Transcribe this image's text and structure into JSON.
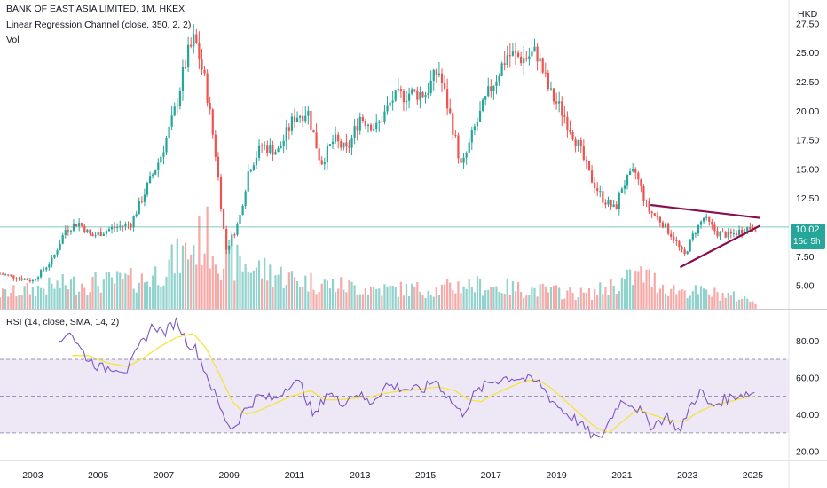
{
  "header": {
    "symbol_line": "BANK OF EAST ASIA LIMITED, 1M, HKEX",
    "indicator_1": "Linear Regression Channel (close, 350, 2, 2)",
    "indicator_2": "Vol",
    "rsi_title": "RSI (14, close, SMA, 14, 2)",
    "currency": "HKD"
  },
  "price_badge": {
    "value": "10.02",
    "countdown": "15d 5h",
    "color": "#26a69a"
  },
  "colors": {
    "up": "#26a69a",
    "down": "#ef5350",
    "trendline": "#880e4f",
    "rsi_line": "#7e57c2",
    "rsi_ma": "#f5e53b",
    "rsi_band": "#ede7f6"
  },
  "chart_data": [
    {
      "type": "candlestick",
      "title": "BANK OF EAST ASIA LIMITED, 1M, HKEX",
      "ylabel": "HKD",
      "x_ticks": [
        "2003",
        "2005",
        "2007",
        "2009",
        "2011",
        "2013",
        "2015",
        "2017",
        "2019",
        "2021",
        "2023",
        "2025"
      ],
      "y_ticks": [
        5.0,
        7.5,
        10.0,
        12.5,
        15.0,
        17.5,
        20.0,
        22.5,
        25.0,
        27.5
      ],
      "ylim": [
        3.0,
        29.5
      ],
      "last_price": 10.02,
      "anchors": [
        [
          2002.0,
          6.0
        ],
        [
          2003.0,
          5.4
        ],
        [
          2003.6,
          7.2
        ],
        [
          2004.0,
          9.8
        ],
        [
          2004.4,
          10.4
        ],
        [
          2004.8,
          9.2
        ],
        [
          2005.4,
          9.9
        ],
        [
          2006.0,
          10.3
        ],
        [
          2006.5,
          13.5
        ],
        [
          2006.9,
          16.0
        ],
        [
          2007.3,
          19.5
        ],
        [
          2007.7,
          24.5
        ],
        [
          2007.95,
          26.2
        ],
        [
          2008.3,
          22.0
        ],
        [
          2008.6,
          16.0
        ],
        [
          2008.9,
          8.0
        ],
        [
          2009.3,
          10.5
        ],
        [
          2009.6,
          15.0
        ],
        [
          2010.0,
          17.0
        ],
        [
          2010.5,
          16.5
        ],
        [
          2011.0,
          19.5
        ],
        [
          2011.4,
          20.0
        ],
        [
          2011.8,
          15.5
        ],
        [
          2012.2,
          17.5
        ],
        [
          2012.6,
          16.5
        ],
        [
          2013.0,
          19.5
        ],
        [
          2013.5,
          18.5
        ],
        [
          2014.0,
          21.0
        ],
        [
          2014.5,
          21.5
        ],
        [
          2015.0,
          21.5
        ],
        [
          2015.4,
          23.5
        ],
        [
          2015.8,
          19.0
        ],
        [
          2016.1,
          15.0
        ],
        [
          2016.5,
          18.5
        ],
        [
          2017.0,
          22.0
        ],
        [
          2017.5,
          24.8
        ],
        [
          2018.0,
          24.5
        ],
        [
          2018.4,
          25.0
        ],
        [
          2018.8,
          21.5
        ],
        [
          2019.2,
          19.8
        ],
        [
          2019.6,
          17.5
        ],
        [
          2020.0,
          14.5
        ],
        [
          2020.4,
          12.5
        ],
        [
          2020.8,
          11.5
        ],
        [
          2021.0,
          13.5
        ],
        [
          2021.4,
          14.8
        ],
        [
          2021.8,
          11.5
        ],
        [
          2022.2,
          10.5
        ],
        [
          2022.6,
          9.0
        ],
        [
          2022.9,
          7.5
        ],
        [
          2023.2,
          9.5
        ],
        [
          2023.5,
          10.8
        ],
        [
          2023.9,
          9.5
        ],
        [
          2024.3,
          9.3
        ],
        [
          2024.8,
          9.9
        ],
        [
          2025.1,
          10.02
        ]
      ],
      "trendlines": [
        {
          "name": "upper",
          "from": [
            2021.9,
            11.9
          ],
          "to": [
            2025.2,
            10.8
          ]
        },
        {
          "name": "lower",
          "from": [
            2022.8,
            6.6
          ],
          "to": [
            2025.2,
            10.1
          ]
        }
      ],
      "volume_anchors": [
        [
          2002.0,
          0.15
        ],
        [
          2004.0,
          0.25
        ],
        [
          2006.5,
          0.3
        ],
        [
          2007.6,
          0.55
        ],
        [
          2008.3,
          0.75
        ],
        [
          2008.8,
          0.5
        ],
        [
          2009.5,
          0.45
        ],
        [
          2011.0,
          0.3
        ],
        [
          2012.0,
          0.25
        ],
        [
          2013.5,
          0.2
        ],
        [
          2015.5,
          0.2
        ],
        [
          2016.2,
          0.25
        ],
        [
          2018.0,
          0.2
        ],
        [
          2020.0,
          0.15
        ],
        [
          2021.6,
          0.35
        ],
        [
          2022.5,
          0.2
        ],
        [
          2024.0,
          0.15
        ],
        [
          2025.1,
          0.08
        ]
      ]
    },
    {
      "type": "line",
      "title": "RSI (14, close, SMA, 14, 2)",
      "y_ticks": [
        20.0,
        40.0,
        60.0,
        80.0
      ],
      "ylim": [
        15,
        97
      ],
      "band": [
        30,
        70
      ],
      "midline": 50,
      "series": [
        {
          "name": "RSI",
          "anchors": [
            [
              2003.8,
              77
            ],
            [
              2004.1,
              87
            ],
            [
              2004.4,
              77
            ],
            [
              2004.7,
              70
            ],
            [
              2005.1,
              65
            ],
            [
              2005.5,
              66
            ],
            [
              2005.9,
              64
            ],
            [
              2006.3,
              78
            ],
            [
              2006.7,
              89
            ],
            [
              2007.0,
              84
            ],
            [
              2007.4,
              91
            ],
            [
              2007.7,
              80
            ],
            [
              2008.0,
              75
            ],
            [
              2008.4,
              58
            ],
            [
              2008.8,
              40
            ],
            [
              2009.1,
              32
            ],
            [
              2009.5,
              43
            ],
            [
              2009.9,
              50
            ],
            [
              2010.4,
              48
            ],
            [
              2010.9,
              58
            ],
            [
              2011.2,
              56
            ],
            [
              2011.6,
              38
            ],
            [
              2012.0,
              53
            ],
            [
              2012.4,
              46
            ],
            [
              2012.9,
              52
            ],
            [
              2013.3,
              46
            ],
            [
              2013.8,
              56
            ],
            [
              2014.4,
              54
            ],
            [
              2014.9,
              53
            ],
            [
              2015.3,
              59
            ],
            [
              2015.8,
              47
            ],
            [
              2016.1,
              40
            ],
            [
              2016.5,
              51
            ],
            [
              2016.9,
              57
            ],
            [
              2017.4,
              60
            ],
            [
              2017.8,
              60
            ],
            [
              2018.1,
              59
            ],
            [
              2018.5,
              57
            ],
            [
              2018.8,
              49
            ],
            [
              2019.2,
              42
            ],
            [
              2019.6,
              37
            ],
            [
              2020.0,
              30
            ],
            [
              2020.3,
              26
            ],
            [
              2020.6,
              36
            ],
            [
              2020.9,
              46
            ],
            [
              2021.1,
              48
            ],
            [
              2021.5,
              43
            ],
            [
              2021.9,
              34
            ],
            [
              2022.4,
              39
            ],
            [
              2022.8,
              30
            ],
            [
              2023.0,
              42
            ],
            [
              2023.4,
              53
            ],
            [
              2023.7,
              44
            ],
            [
              2024.1,
              48
            ],
            [
              2024.6,
              51
            ],
            [
              2025.1,
              52
            ]
          ]
        },
        {
          "name": "RSI-based MA",
          "anchors": [
            [
              2004.2,
              72
            ],
            [
              2004.7,
              72
            ],
            [
              2005.3,
              68
            ],
            [
              2005.9,
              66
            ],
            [
              2006.4,
              71
            ],
            [
              2006.9,
              77
            ],
            [
              2007.4,
              82
            ],
            [
              2007.9,
              84
            ],
            [
              2008.3,
              76
            ],
            [
              2008.7,
              62
            ],
            [
              2009.1,
              47
            ],
            [
              2009.5,
              40
            ],
            [
              2009.9,
              42
            ],
            [
              2010.4,
              46
            ],
            [
              2010.9,
              50
            ],
            [
              2011.5,
              53
            ],
            [
              2011.9,
              48
            ],
            [
              2012.4,
              48
            ],
            [
              2012.9,
              49
            ],
            [
              2013.4,
              50
            ],
            [
              2013.9,
              52
            ],
            [
              2014.4,
              53
            ],
            [
              2014.9,
              54
            ],
            [
              2015.4,
              55
            ],
            [
              2015.9,
              53
            ],
            [
              2016.3,
              48
            ],
            [
              2016.7,
              47
            ],
            [
              2017.1,
              51
            ],
            [
              2017.6,
              55
            ],
            [
              2018.0,
              58
            ],
            [
              2018.4,
              59
            ],
            [
              2018.8,
              55
            ],
            [
              2019.3,
              47
            ],
            [
              2019.8,
              39
            ],
            [
              2020.2,
              33
            ],
            [
              2020.6,
              30
            ],
            [
              2021.0,
              36
            ],
            [
              2021.5,
              43
            ],
            [
              2021.9,
              40
            ],
            [
              2022.4,
              37
            ],
            [
              2022.9,
              36
            ],
            [
              2023.3,
              41
            ],
            [
              2023.8,
              45
            ],
            [
              2024.3,
              47
            ],
            [
              2024.7,
              49
            ],
            [
              2025.1,
              50
            ]
          ]
        }
      ]
    }
  ]
}
